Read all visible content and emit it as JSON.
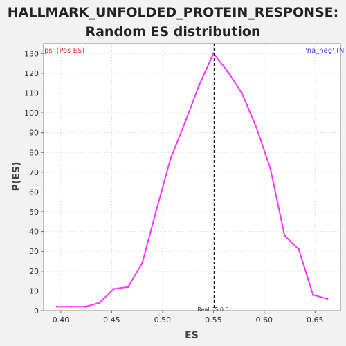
{
  "chart_data": {
    "type": "line",
    "title": "HALLMARK_UNFOLDED_PROTEIN_RESPONSE:",
    "subtitle": "Random ES distribution",
    "xlabel": "ES",
    "ylabel": "P(ES)",
    "xlim": [
      0.383,
      0.675
    ],
    "ylim": [
      0,
      135
    ],
    "x_ticks": [
      "0.40",
      "0.45",
      "0.50",
      "0.55",
      "0.60",
      "0.65"
    ],
    "y_ticks": [
      "0",
      "10",
      "20",
      "30",
      "40",
      "50",
      "60",
      "70",
      "80",
      "90",
      "100",
      "110",
      "120",
      "130"
    ],
    "grid": true,
    "series": [
      {
        "color": "#ff33ff",
        "x": [
          0.396,
          0.41,
          0.424,
          0.438,
          0.452,
          0.466,
          0.48,
          0.494,
          0.508,
          0.522,
          0.536,
          0.55,
          0.564,
          0.578,
          0.592,
          0.606,
          0.62,
          0.634,
          0.648,
          0.662
        ],
        "y": [
          2,
          2,
          2,
          4,
          11,
          12,
          24,
          51,
          77,
          95,
          114,
          130,
          121,
          110,
          93,
          72,
          38,
          31,
          8,
          6
        ]
      }
    ],
    "reference_line": {
      "x": 0.551,
      "label": "Real ES 0.6"
    },
    "annotations": {
      "left_text": "ps' (Pos ES)",
      "left_color": "#e03030",
      "right_text": "'na_neg' (N",
      "right_color": "#3a3ae0"
    }
  }
}
